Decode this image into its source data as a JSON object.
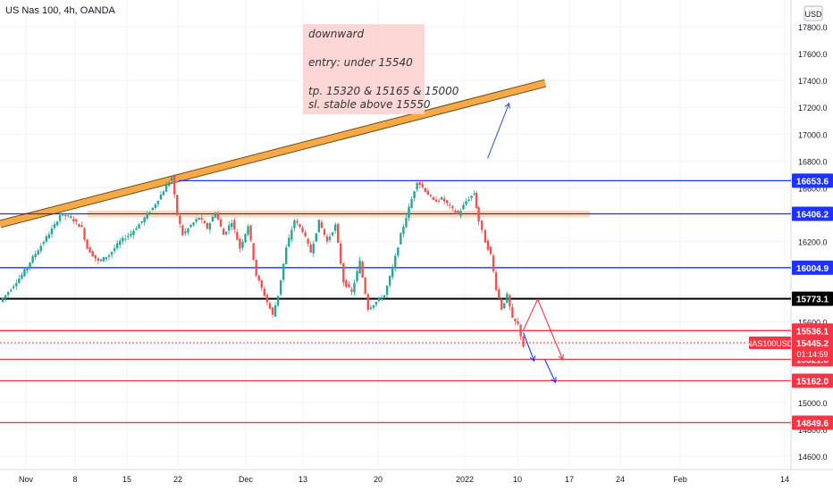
{
  "symbol": "US Nas 100, 4h, OANDA",
  "currency": "USD",
  "note": {
    "lines": [
      "downward",
      "entry: under 15540",
      "tp. 15320 & 15165 & 15000",
      "sl. stable above 15550"
    ]
  },
  "chart_data": {
    "type": "candlestick",
    "title": "US Nas 100, 4h, OANDA",
    "ylim": [
      14500,
      18000
    ],
    "y_ticks": [
      14600,
      14800,
      15000,
      15200,
      15400,
      15600,
      15800,
      16000,
      16200,
      16400,
      16600,
      16800,
      17000,
      17200,
      17400,
      17600,
      17800
    ],
    "x_ticks": [
      "Nov",
      "8",
      "15",
      "22",
      "Dec",
      "13",
      "20",
      "2022",
      "10",
      "17",
      "24",
      "Feb",
      "14"
    ],
    "last_price": {
      "label": "NAS100USD",
      "value": "15445.2",
      "countdown": "01:14:59"
    },
    "horizontal_levels": [
      {
        "value": "16653.6",
        "color": "#1e33ff"
      },
      {
        "value": "16406.2",
        "color": "#1e33ff"
      },
      {
        "value": "16004.9",
        "color": "#1e33ff"
      },
      {
        "value": "15773.1",
        "color": "#000000"
      },
      {
        "value": "15536.1",
        "color": "#f23645"
      },
      {
        "value": "15321.8",
        "color": "#f23645"
      },
      {
        "value": "15162.0",
        "color": "#f23645"
      },
      {
        "value": "14849.6",
        "color": "#f23645"
      }
    ],
    "resistance_zone": [
      16380,
      16430
    ],
    "trendline": {
      "from": [
        0,
        16330
      ],
      "to": [
        100,
        17380
      ]
    },
    "price_path": [
      [
        0,
        15750
      ],
      [
        2,
        15850
      ],
      [
        4,
        15950
      ],
      [
        6,
        16080
      ],
      [
        8,
        16200
      ],
      [
        10,
        16320
      ],
      [
        11,
        16400
      ],
      [
        13,
        16380
      ],
      [
        15,
        16300
      ],
      [
        16,
        16150
      ],
      [
        18,
        16050
      ],
      [
        20,
        16100
      ],
      [
        22,
        16200
      ],
      [
        24,
        16260
      ],
      [
        26,
        16350
      ],
      [
        28,
        16450
      ],
      [
        30,
        16580
      ],
      [
        31.5,
        16680
      ],
      [
        32.5,
        16400
      ],
      [
        33.5,
        16250
      ],
      [
        35,
        16320
      ],
      [
        36.5,
        16380
      ],
      [
        38,
        16300
      ],
      [
        39.5,
        16420
      ],
      [
        41,
        16250
      ],
      [
        42.5,
        16350
      ],
      [
        44,
        16150
      ],
      [
        45.5,
        16320
      ],
      [
        47,
        15950
      ],
      [
        48,
        15850
      ],
      [
        50,
        15650
      ],
      [
        51,
        15800
      ],
      [
        52.5,
        16150
      ],
      [
        54,
        16360
      ],
      [
        55.5,
        16280
      ],
      [
        57,
        16120
      ],
      [
        58.5,
        16350
      ],
      [
        60,
        16200
      ],
      [
        61.5,
        16320
      ],
      [
        63,
        15900
      ],
      [
        64.5,
        15820
      ],
      [
        66,
        16050
      ],
      [
        67.5,
        15700
      ],
      [
        69,
        15750
      ],
      [
        70.5,
        15800
      ],
      [
        72,
        16000
      ],
      [
        73.5,
        16250
      ],
      [
        75,
        16450
      ],
      [
        76.5,
        16650
      ],
      [
        78,
        16580
      ],
      [
        79.5,
        16500
      ],
      [
        81,
        16520
      ],
      [
        82.5,
        16460
      ],
      [
        84,
        16400
      ],
      [
        85.5,
        16500
      ],
      [
        87,
        16560
      ],
      [
        87.8,
        16350
      ],
      [
        89,
        16200
      ],
      [
        90,
        16100
      ],
      [
        91,
        15850
      ],
      [
        92,
        15700
      ],
      [
        93,
        15800
      ],
      [
        94,
        15620
      ],
      [
        95,
        15580
      ],
      [
        96,
        15420
      ]
    ],
    "projections": [
      {
        "color": "#1e33ff",
        "points": [
          [
            0,
            15520
          ],
          [
            3,
            15310
          ]
        ]
      },
      {
        "color": "#1e33ff",
        "points": [
          [
            6,
            15320
          ],
          [
            9,
            15150
          ]
        ]
      },
      {
        "color": "#f23645",
        "points": [
          [
            0,
            15540
          ],
          [
            4,
            15770
          ],
          [
            11,
            15320
          ]
        ]
      },
      {
        "color": "#3b5bd6",
        "points": [
          [
            -10,
            16820
          ],
          [
            -4,
            17230
          ]
        ]
      }
    ]
  }
}
